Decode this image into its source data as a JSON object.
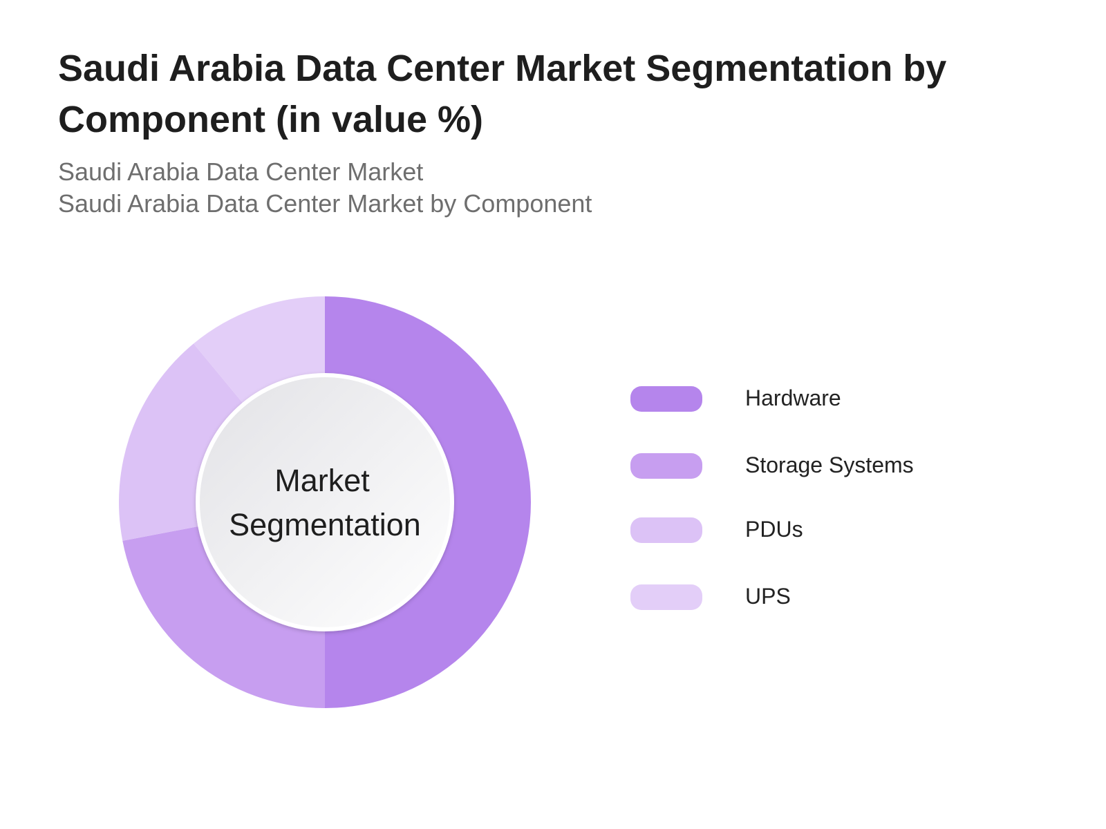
{
  "header": {
    "title": "Saudi Arabia Data Center Market Segmentation by Component (in value %)",
    "subtitle_line1": "Saudi Arabia Data Center Market",
    "subtitle_line2": "Saudi Arabia Data Center Market by Component"
  },
  "chart_data": {
    "type": "pie",
    "variant": "donut",
    "center_label_line1": "Market",
    "center_label_line2": "Segmentation",
    "categories": [
      "Hardware",
      "Storage Systems",
      "PDUs",
      "UPS"
    ],
    "values": [
      50,
      22,
      17,
      11
    ],
    "colors": [
      "#b585ec",
      "#c79ef0",
      "#dcc2f6",
      "#e3cef8"
    ],
    "legend_position": "right"
  }
}
